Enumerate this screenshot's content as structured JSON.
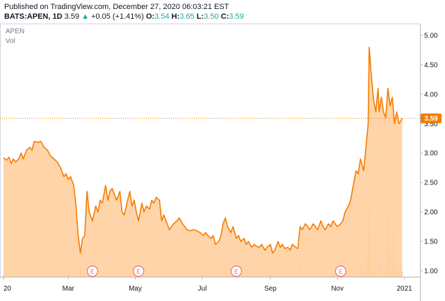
{
  "header": {
    "published": "Published on TradingView.com, December 27, 2020 06:03:21 EST",
    "symbol": "BATS:APEN, 1D",
    "last": "3.59",
    "change_arrow": "▲",
    "change": "+0.05 (+1.41%)",
    "o_label": "O:",
    "o_value": "3.54",
    "h_label": "H:",
    "h_value": "3.65",
    "l_label": "L:",
    "l_value": "3.50",
    "c_label": "C:",
    "c_value": "3.59"
  },
  "legend": {
    "ticker": "APEN",
    "vol": "Vol"
  },
  "colors": {
    "line": "#f57c00",
    "fill": "#ffcc99",
    "price_tag": "#f57c00",
    "earnings": "#e57373"
  },
  "chart_data": {
    "type": "area",
    "ylim": [
      0.9,
      5.2
    ],
    "xlim": [
      0,
      364
    ],
    "y_ticks": [
      "5.00",
      "4.50",
      "4.00",
      "3.50",
      "3.00",
      "2.50",
      "2.00",
      "1.50",
      "1.00"
    ],
    "x_ticks": [
      {
        "label": "20",
        "x": 0
      },
      {
        "label": "Mar",
        "x": 59
      },
      {
        "label": "May",
        "x": 120
      },
      {
        "label": "Jul",
        "x": 181
      },
      {
        "label": "Sep",
        "x": 243
      },
      {
        "label": "Nov",
        "x": 304
      },
      {
        "label": "2021",
        "x": 365
      }
    ],
    "last_price": "3.59",
    "earnings_label": "E",
    "earnings_x": [
      81,
      123,
      212,
      307
    ],
    "series": [
      {
        "points": [
          [
            0,
            2.92
          ],
          [
            3,
            2.88
          ],
          [
            5,
            2.93
          ],
          [
            7,
            2.82
          ],
          [
            9,
            2.9
          ],
          [
            11,
            2.85
          ],
          [
            14,
            2.9
          ],
          [
            16,
            3.0
          ],
          [
            18,
            2.9
          ],
          [
            21,
            3.05
          ],
          [
            24,
            3.1
          ],
          [
            26,
            3.05
          ],
          [
            28,
            3.2
          ],
          [
            31,
            3.18
          ],
          [
            34,
            3.2
          ],
          [
            37,
            3.1
          ],
          [
            40,
            3.05
          ],
          [
            43,
            2.95
          ],
          [
            46,
            2.9
          ],
          [
            49,
            2.85
          ],
          [
            52,
            2.75
          ],
          [
            55,
            2.6
          ],
          [
            57,
            2.65
          ],
          [
            59,
            2.55
          ],
          [
            61,
            2.6
          ],
          [
            64,
            2.45
          ],
          [
            66,
            2.1
          ],
          [
            68,
            1.6
          ],
          [
            70,
            1.3
          ],
          [
            72,
            1.55
          ],
          [
            74,
            1.6
          ],
          [
            76,
            2.35
          ],
          [
            78,
            2.0
          ],
          [
            81,
            1.85
          ],
          [
            84,
            2.1
          ],
          [
            86,
            2.0
          ],
          [
            88,
            2.2
          ],
          [
            90,
            2.15
          ],
          [
            93,
            2.45
          ],
          [
            95,
            2.2
          ],
          [
            97,
            2.35
          ],
          [
            99,
            2.4
          ],
          [
            101,
            2.3
          ],
          [
            103,
            2.2
          ],
          [
            106,
            2.35
          ],
          [
            108,
            2.0
          ],
          [
            110,
            1.95
          ],
          [
            113,
            2.2
          ],
          [
            115,
            2.35
          ],
          [
            117,
            2.1
          ],
          [
            119,
            2.2
          ],
          [
            121,
            2.0
          ],
          [
            123,
            1.85
          ],
          [
            126,
            2.15
          ],
          [
            128,
            2.0
          ],
          [
            130,
            2.1
          ],
          [
            133,
            2.05
          ],
          [
            135,
            2.2
          ],
          [
            137,
            2.15
          ],
          [
            139,
            2.25
          ],
          [
            142,
            2.2
          ],
          [
            144,
            1.85
          ],
          [
            146,
            1.95
          ],
          [
            149,
            1.8
          ],
          [
            151,
            1.7
          ],
          [
            153,
            1.75
          ],
          [
            155,
            1.8
          ],
          [
            158,
            1.85
          ],
          [
            160,
            1.9
          ],
          [
            163,
            1.8
          ],
          [
            165,
            1.75
          ],
          [
            167,
            1.7
          ],
          [
            170,
            1.68
          ],
          [
            173,
            1.7
          ],
          [
            176,
            1.68
          ],
          [
            179,
            1.65
          ],
          [
            182,
            1.6
          ],
          [
            184,
            1.65
          ],
          [
            186,
            1.6
          ],
          [
            189,
            1.55
          ],
          [
            191,
            1.6
          ],
          [
            193,
            1.45
          ],
          [
            196,
            1.5
          ],
          [
            198,
            1.6
          ],
          [
            200,
            1.8
          ],
          [
            202,
            1.9
          ],
          [
            204,
            1.75
          ],
          [
            207,
            1.65
          ],
          [
            209,
            1.75
          ],
          [
            212,
            1.55
          ],
          [
            214,
            1.6
          ],
          [
            216,
            1.5
          ],
          [
            219,
            1.55
          ],
          [
            221,
            1.45
          ],
          [
            223,
            1.5
          ],
          [
            226,
            1.4
          ],
          [
            228,
            1.45
          ],
          [
            230,
            1.42
          ],
          [
            233,
            1.4
          ],
          [
            235,
            1.45
          ],
          [
            238,
            1.35
          ],
          [
            240,
            1.4
          ],
          [
            243,
            1.45
          ],
          [
            245,
            1.3
          ],
          [
            247,
            1.35
          ],
          [
            250,
            1.5
          ],
          [
            252,
            1.4
          ],
          [
            254,
            1.45
          ],
          [
            256,
            1.38
          ],
          [
            259,
            1.4
          ],
          [
            261,
            1.35
          ],
          [
            263,
            1.45
          ],
          [
            266,
            1.4
          ],
          [
            268,
            1.38
          ],
          [
            270,
            1.75
          ],
          [
            272,
            1.7
          ],
          [
            275,
            1.8
          ],
          [
            277,
            1.75
          ],
          [
            279,
            1.7
          ],
          [
            282,
            1.8
          ],
          [
            284,
            1.75
          ],
          [
            286,
            1.7
          ],
          [
            289,
            1.85
          ],
          [
            291,
            1.75
          ],
          [
            293,
            1.7
          ],
          [
            296,
            1.8
          ],
          [
            298,
            1.75
          ],
          [
            300,
            1.85
          ],
          [
            302,
            1.8
          ],
          [
            304,
            1.75
          ],
          [
            307,
            1.8
          ],
          [
            309,
            1.85
          ],
          [
            311,
            2.0
          ],
          [
            314,
            2.1
          ],
          [
            316,
            2.2
          ],
          [
            318,
            2.4
          ],
          [
            321,
            2.7
          ],
          [
            323,
            2.65
          ],
          [
            325,
            2.9
          ],
          [
            328,
            2.7
          ],
          [
            330,
            3.1
          ],
          [
            332,
            3.5
          ],
          [
            333,
            4.8
          ],
          [
            335,
            4.3
          ],
          [
            337,
            3.9
          ],
          [
            339,
            3.7
          ],
          [
            341,
            4.1
          ],
          [
            342,
            3.7
          ],
          [
            344,
            3.95
          ],
          [
            346,
            3.7
          ],
          [
            348,
            3.6
          ],
          [
            350,
            4.1
          ],
          [
            352,
            3.8
          ],
          [
            354,
            3.95
          ],
          [
            356,
            3.5
          ],
          [
            358,
            3.7
          ],
          [
            360,
            3.5
          ],
          [
            362,
            3.55
          ],
          [
            363,
            3.59
          ]
        ]
      }
    ],
    "volume": {
      "ylim": [
        0,
        10
      ],
      "bars": [
        [
          0,
          0.3
        ],
        [
          6,
          0.4
        ],
        [
          12,
          0.3
        ],
        [
          20,
          0.5
        ],
        [
          28,
          0.4
        ],
        [
          36,
          0.3
        ],
        [
          44,
          0.3
        ],
        [
          52,
          0.4
        ],
        [
          60,
          0.5
        ],
        [
          66,
          1.0
        ],
        [
          70,
          1.2
        ],
        [
          74,
          0.8
        ],
        [
          78,
          0.6
        ],
        [
          84,
          0.5
        ],
        [
          92,
          0.6
        ],
        [
          100,
          0.4
        ],
        [
          108,
          0.4
        ],
        [
          116,
          0.5
        ],
        [
          124,
          0.4
        ],
        [
          132,
          0.4
        ],
        [
          140,
          0.3
        ],
        [
          148,
          0.3
        ],
        [
          156,
          0.3
        ],
        [
          164,
          0.3
        ],
        [
          172,
          0.3
        ],
        [
          180,
          0.3
        ],
        [
          188,
          0.4
        ],
        [
          196,
          0.5
        ],
        [
          200,
          1.2
        ],
        [
          202,
          0.8
        ],
        [
          210,
          0.6
        ],
        [
          218,
          0.5
        ],
        [
          226,
          0.4
        ],
        [
          234,
          0.3
        ],
        [
          242,
          0.3
        ],
        [
          250,
          0.4
        ],
        [
          258,
          0.3
        ],
        [
          266,
          0.4
        ],
        [
          270,
          1.5
        ],
        [
          276,
          0.8
        ],
        [
          284,
          0.5
        ],
        [
          292,
          0.5
        ],
        [
          300,
          0.6
        ],
        [
          306,
          0.8
        ],
        [
          312,
          1.0
        ],
        [
          318,
          1.5
        ],
        [
          322,
          1.3
        ],
        [
          326,
          1.8
        ],
        [
          330,
          2.5
        ],
        [
          332,
          6.5
        ],
        [
          333,
          10.0
        ],
        [
          335,
          4.0
        ],
        [
          338,
          3.0
        ],
        [
          341,
          1.5
        ],
        [
          344,
          2.0
        ],
        [
          348,
          1.5
        ],
        [
          350,
          9.0
        ],
        [
          352,
          3.5
        ],
        [
          355,
          7.5
        ],
        [
          358,
          1.5
        ],
        [
          361,
          1.0
        ],
        [
          363,
          0.8
        ]
      ]
    }
  }
}
